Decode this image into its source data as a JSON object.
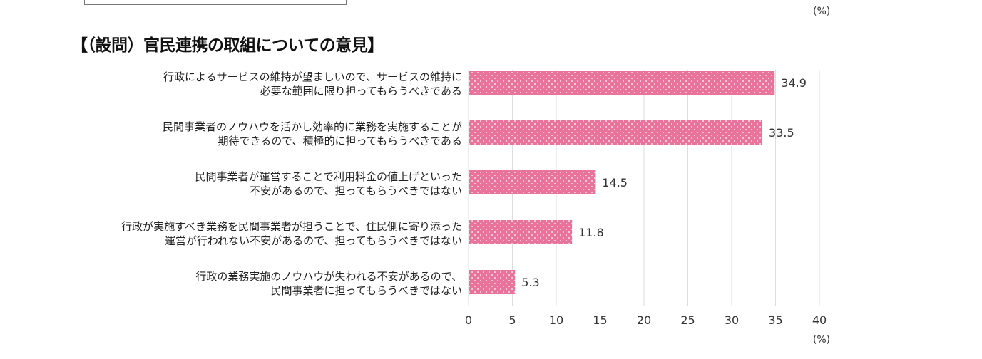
{
  "header": {
    "unit_top": "(%)"
  },
  "chart_data": {
    "type": "bar",
    "orientation": "horizontal",
    "title": "【（設問）官民連携の取組についての意見】",
    "categories": [
      [
        "行政によるサービスの維持が望ましいので、サービスの維持に",
        "必要な範囲に限り担ってもらうべきである"
      ],
      [
        "民間事業者のノウハウを活かし効率的に業務を実施することが",
        "期待できるので、積極的に担ってもらうべきである"
      ],
      [
        "民間事業者が運営することで利用料金の値上げといった",
        "不安があるので、担ってもらうべきではない"
      ],
      [
        "行政が実施すべき業務を民間事業者が担うことで、住民側に寄り添った",
        "運営が行われない不安があるので、担ってもらうべきではない"
      ],
      [
        "行政の業務実施のノウハウが失われる不安があるので、",
        "民間事業者に担ってもらうべきではない"
      ]
    ],
    "values": [
      34.9,
      33.5,
      14.5,
      11.8,
      5.3
    ],
    "value_labels": [
      "34.9",
      "33.5",
      "14.5",
      "11.8",
      "5.3"
    ],
    "xlim": [
      0,
      40
    ],
    "xticks": [
      "0",
      "5",
      "10",
      "15",
      "20",
      "25",
      "30",
      "35",
      "40"
    ],
    "xlabel": "(%)",
    "grid": true,
    "bar_color": "#e9739b",
    "pattern": "white dots"
  }
}
